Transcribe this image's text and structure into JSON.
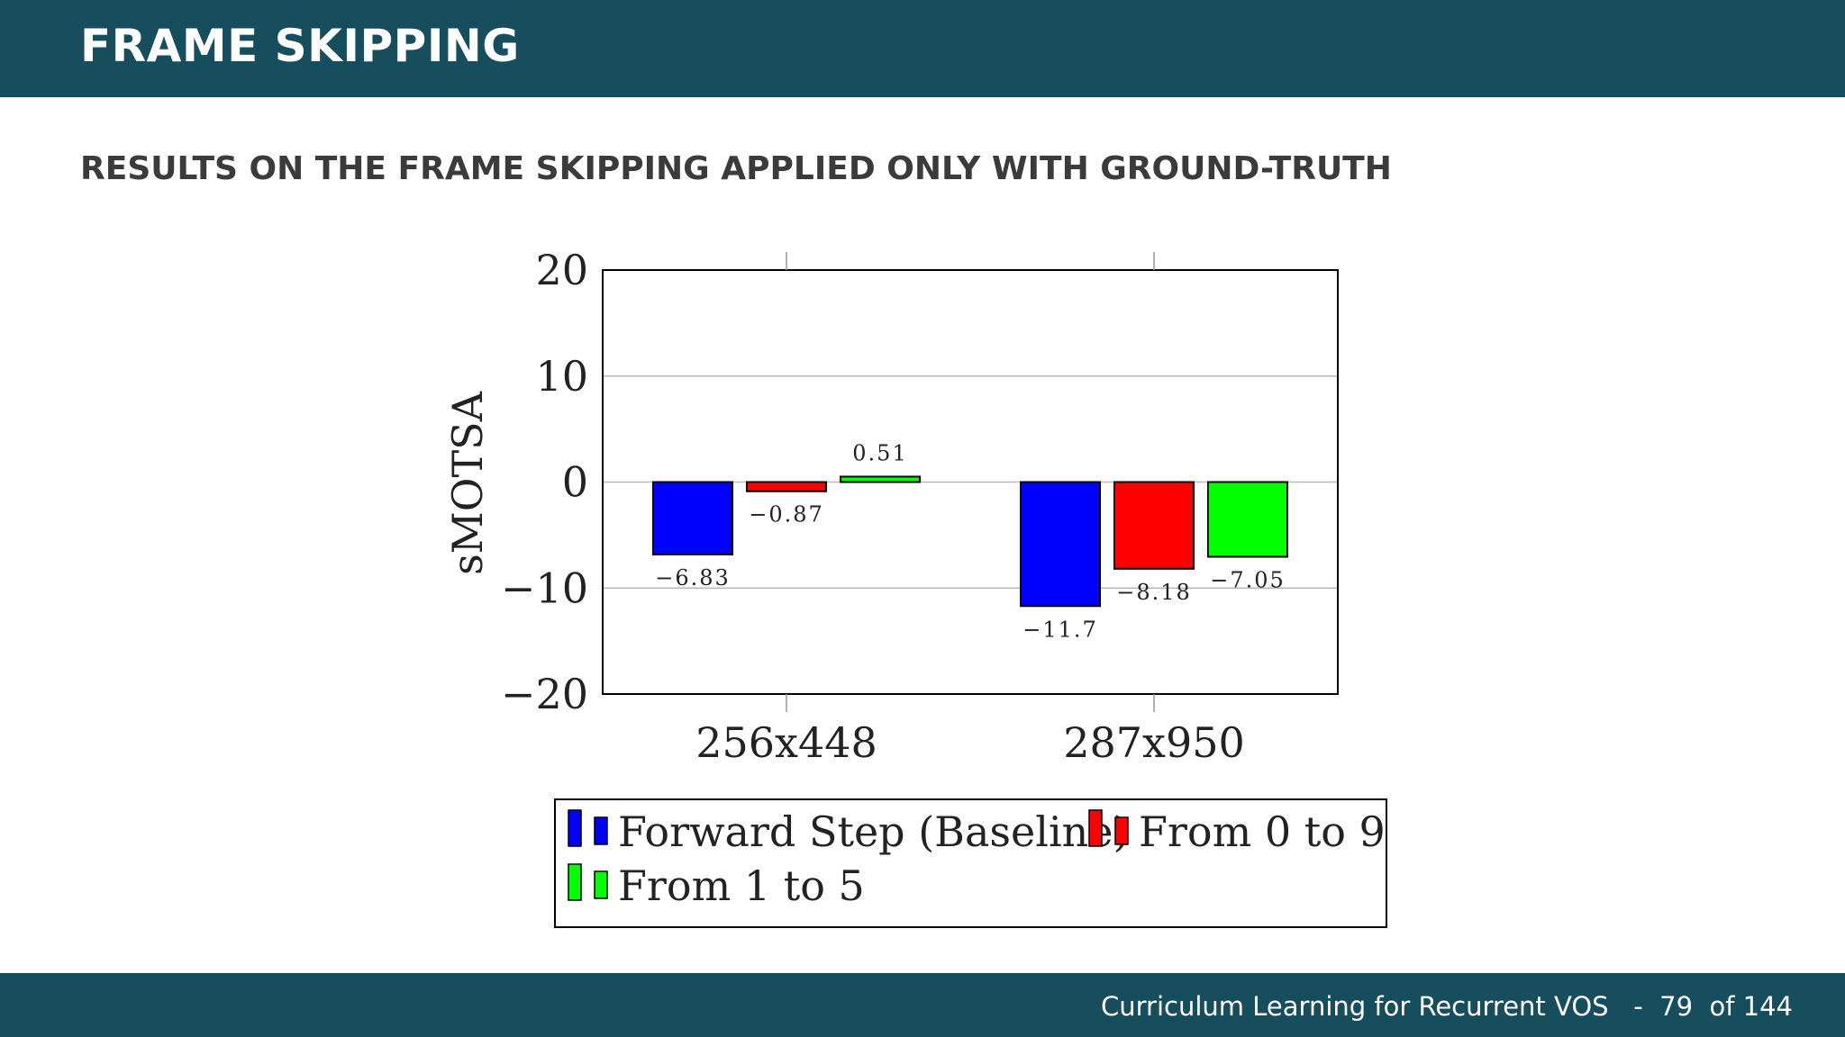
{
  "header": {
    "title": "FRAME SKIPPING"
  },
  "subtitle": "RESULTS ON THE FRAME SKIPPING APPLIED ONLY WITH GROUND-TRUTH",
  "footer": {
    "title": "Curriculum Learning for Recurrent VOS",
    "separator": "-",
    "page": "79",
    "of_label": "of",
    "total": "144"
  },
  "chart_data": {
    "type": "bar",
    "title": "",
    "xlabel": "",
    "ylabel": "sMOTSA",
    "ylim": [
      -20,
      20
    ],
    "yticks": [
      20,
      10,
      0,
      -10,
      -20
    ],
    "ytick_labels": [
      "20",
      "10",
      "0",
      "−10",
      "−20"
    ],
    "grid": true,
    "legend_position": "bottom",
    "categories": [
      "256x448",
      "287x950"
    ],
    "series": [
      {
        "name": "Forward Step (Baseline)",
        "color": "#0000ff",
        "values": [
          -6.83,
          -11.7
        ],
        "labels": [
          "−6.83",
          "−11.7"
        ]
      },
      {
        "name": "From 0 to 9",
        "color": "#ff0000",
        "values": [
          -0.87,
          -8.18
        ],
        "labels": [
          "−0.87",
          "−8.18"
        ]
      },
      {
        "name": "From 1 to 5",
        "color": "#00ff00",
        "values": [
          0.51,
          -7.05
        ],
        "labels": [
          "0.51",
          "−7.05"
        ]
      }
    ]
  }
}
